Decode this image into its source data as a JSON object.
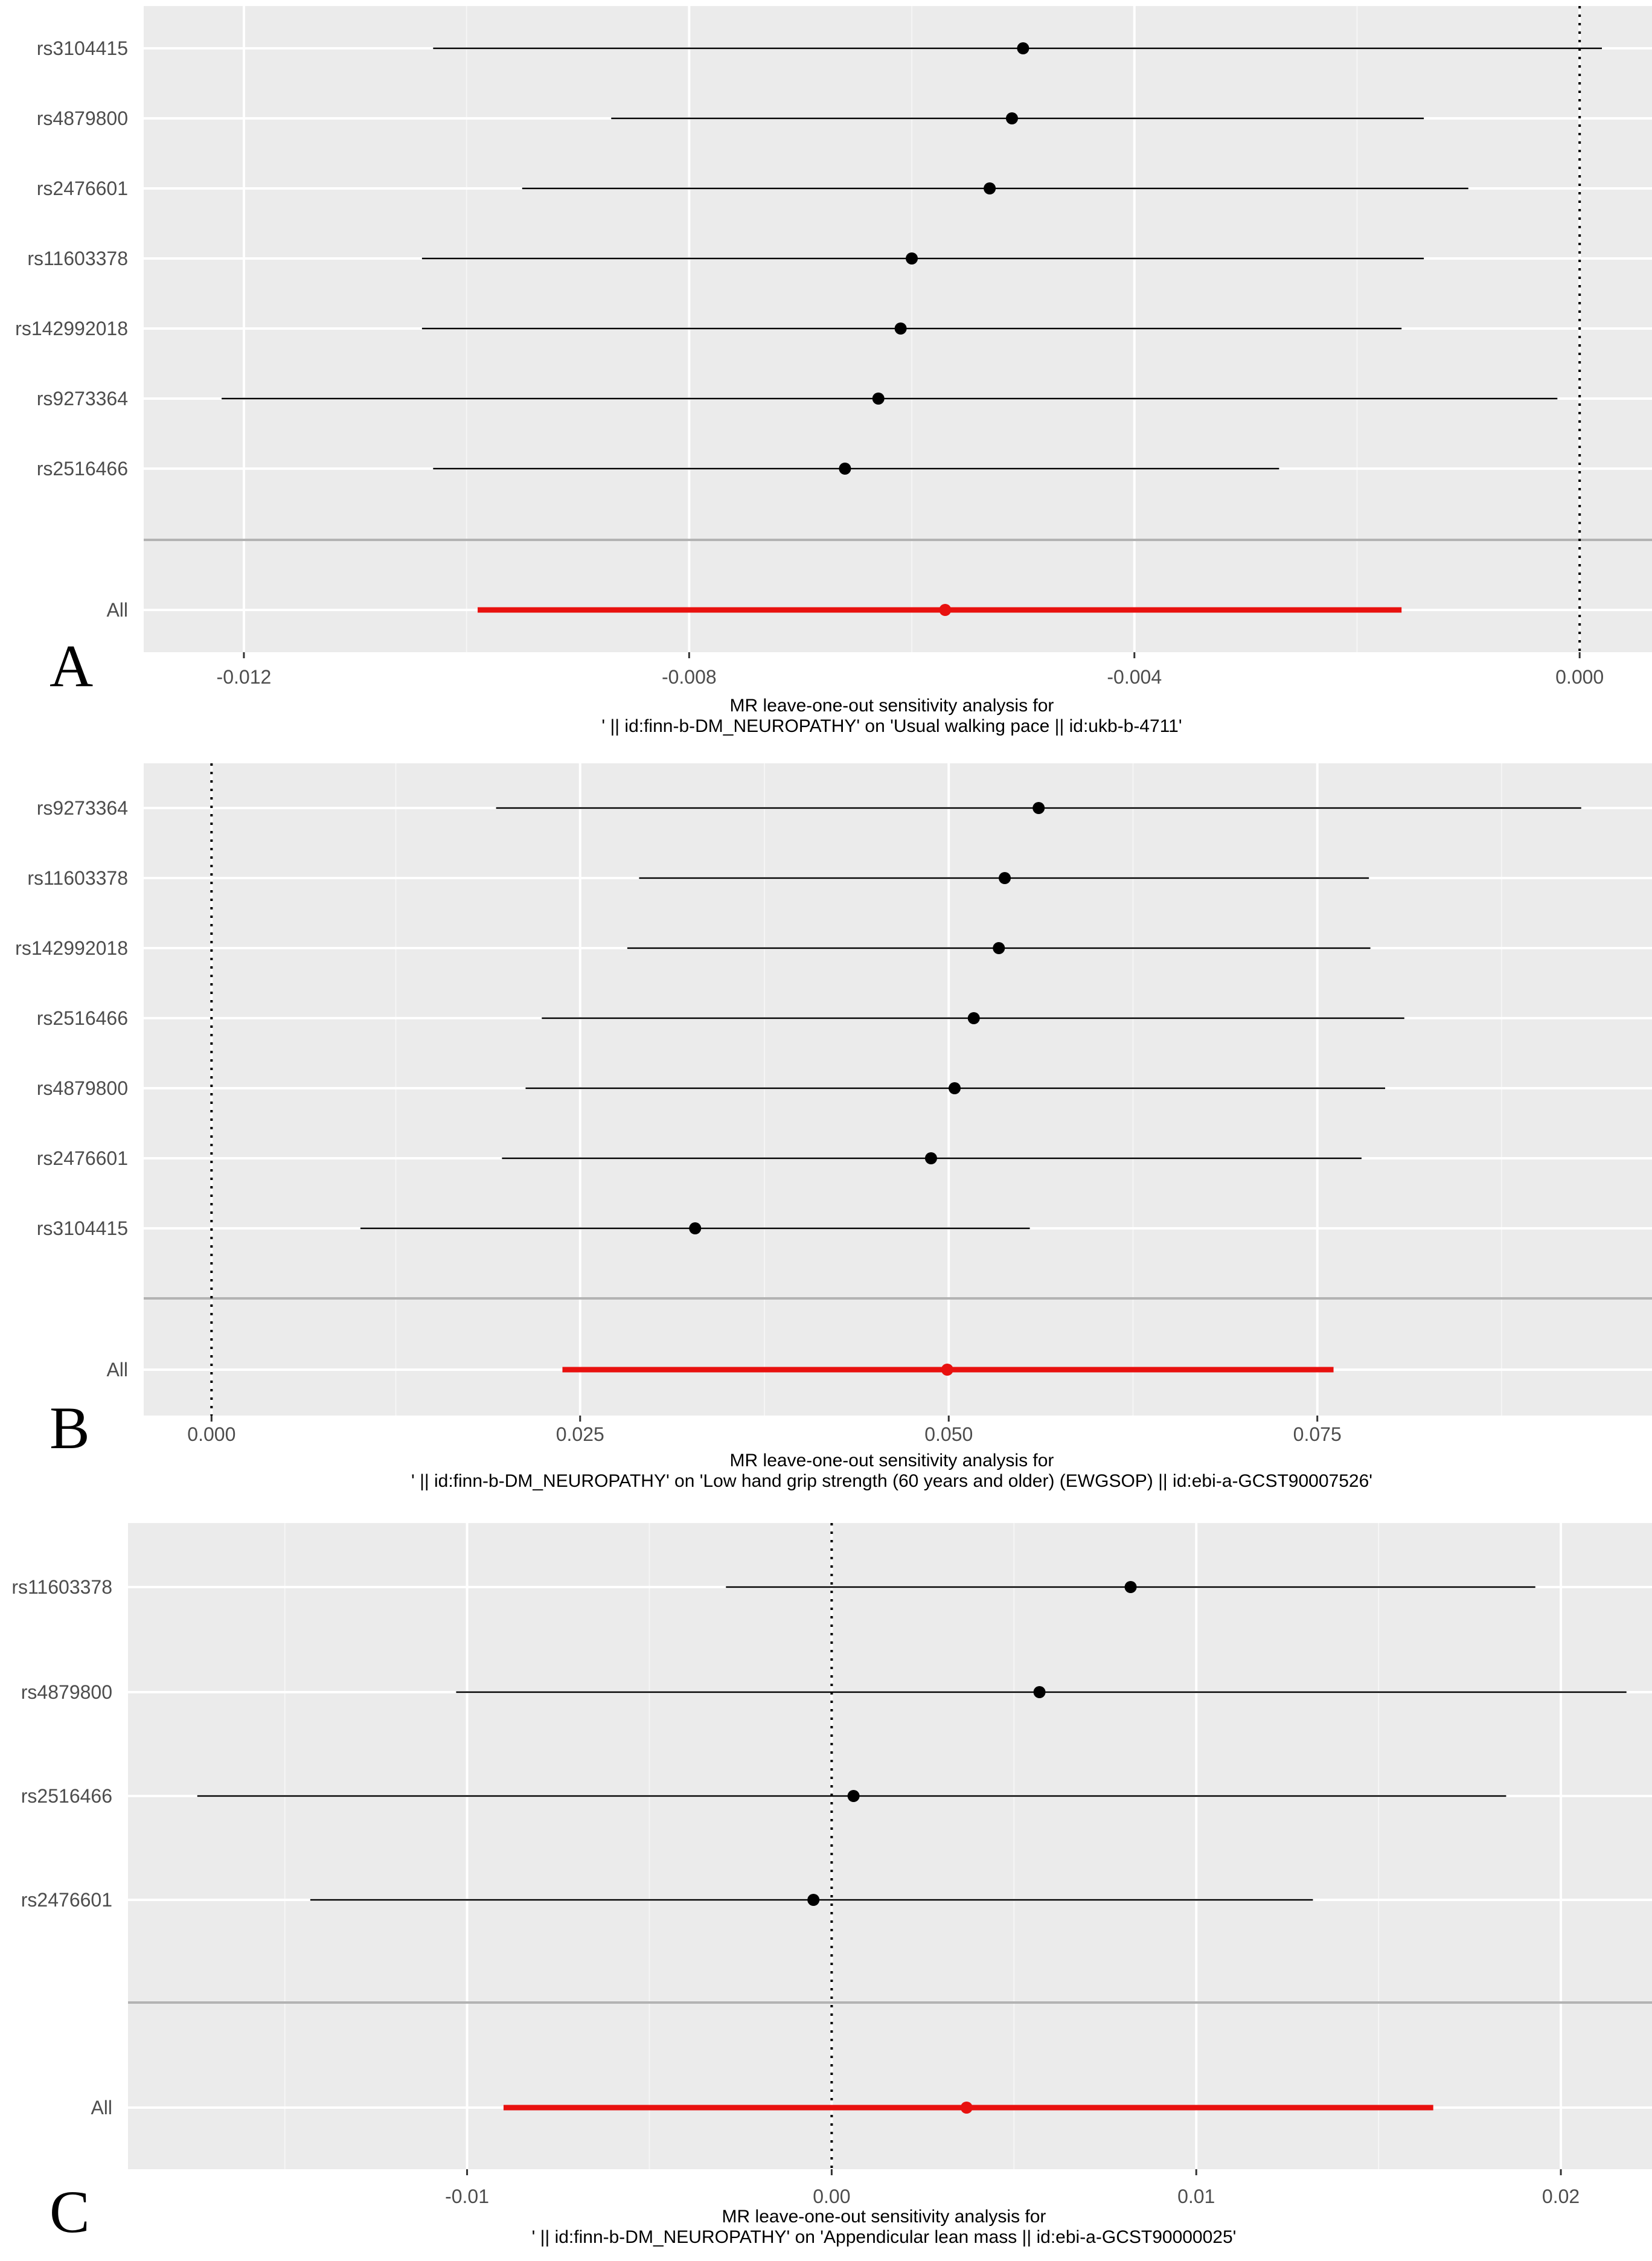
{
  "chart_data": [
    {
      "panel": "A",
      "type": "forest",
      "caption_line1": "MR leave-one-out sensitivity analysis for",
      "caption_line2": "' || id:finn-b-DM_NEUROPATHY' on 'Usual walking pace || id:ukb-b-4711'",
      "xlim": [
        -0.0129,
        0.00065
      ],
      "x_ticks": [
        -0.012,
        -0.008,
        -0.004,
        0.0
      ],
      "x_tick_labels": [
        "-0.012",
        "-0.008",
        "-0.004",
        "0.000"
      ],
      "reference_line": 0,
      "snps": [
        {
          "label": "rs3104415",
          "b": -0.005,
          "lo": -0.0103,
          "hi": 0.0002
        },
        {
          "label": "rs4879800",
          "b": -0.0051,
          "lo": -0.0087,
          "hi": -0.0014
        },
        {
          "label": "rs2476601",
          "b": -0.0053,
          "lo": -0.0095,
          "hi": -0.001
        },
        {
          "label": "rs11603378",
          "b": -0.006,
          "lo": -0.0104,
          "hi": -0.0014
        },
        {
          "label": "rs142992018",
          "b": -0.0061,
          "lo": -0.0104,
          "hi": -0.0016
        },
        {
          "label": "rs9273364",
          "b": -0.0063,
          "lo": -0.0122,
          "hi": -0.0002
        },
        {
          "label": "rs2516466",
          "b": -0.0066,
          "lo": -0.0103,
          "hi": -0.0027
        }
      ],
      "all": {
        "label": "All",
        "b": -0.0057,
        "lo": -0.0099,
        "hi": -0.0016
      }
    },
    {
      "panel": "B",
      "type": "forest",
      "caption_line1": "MR leave-one-out sensitivity analysis for",
      "caption_line2": "' || id:finn-b-DM_NEUROPATHY' on 'Low hand grip strength (60 years and older) (EWGSOP) || id:ebi-a-GCST90007526'",
      "xlim": [
        -0.0046,
        0.0977
      ],
      "x_ticks": [
        0.0,
        0.025,
        0.05,
        0.075
      ],
      "x_tick_labels": [
        "0.000",
        "0.025",
        "0.050",
        "0.075"
      ],
      "reference_line": 0,
      "snps": [
        {
          "label": "rs9273364",
          "b": 0.0561,
          "lo": 0.0193,
          "hi": 0.0929
        },
        {
          "label": "rs11603378",
          "b": 0.0538,
          "lo": 0.029,
          "hi": 0.0785
        },
        {
          "label": "rs142992018",
          "b": 0.0534,
          "lo": 0.0282,
          "hi": 0.0786
        },
        {
          "label": "rs2516466",
          "b": 0.0517,
          "lo": 0.0224,
          "hi": 0.0809
        },
        {
          "label": "rs4879800",
          "b": 0.0504,
          "lo": 0.0213,
          "hi": 0.0796
        },
        {
          "label": "rs2476601",
          "b": 0.0488,
          "lo": 0.0197,
          "hi": 0.078
        },
        {
          "label": "rs3104415",
          "b": 0.0328,
          "lo": 0.0101,
          "hi": 0.0555
        }
      ],
      "all": {
        "label": "All",
        "b": 0.0499,
        "lo": 0.0238,
        "hi": 0.0761
      }
    },
    {
      "panel": "C",
      "type": "forest",
      "caption_line1": "MR leave-one-out sensitivity analysis for",
      "caption_line2": "' || id:finn-b-DM_NEUROPATHY' on 'Appendicular lean mass || id:ebi-a-GCST90000025'",
      "xlim": [
        -0.0193,
        0.0225
      ],
      "x_ticks": [
        -0.01,
        0.0,
        0.01,
        0.02
      ],
      "x_tick_labels": [
        "-0.01",
        "0.00",
        "0.01",
        "0.02"
      ],
      "reference_line": 0,
      "snps": [
        {
          "label": "rs11603378",
          "b": 0.0082,
          "lo": -0.0029,
          "hi": 0.0193
        },
        {
          "label": "rs4879800",
          "b": 0.0057,
          "lo": -0.0103,
          "hi": 0.0218
        },
        {
          "label": "rs2516466",
          "b": 0.0006,
          "lo": -0.0174,
          "hi": 0.0185
        },
        {
          "label": "rs2476601",
          "b": -0.0005,
          "lo": -0.0143,
          "hi": 0.0132
        }
      ],
      "all": {
        "label": "All",
        "b": 0.0037,
        "lo": -0.009,
        "hi": 0.0165
      }
    }
  ],
  "colors": {
    "panel_bg": "#ebebeb",
    "grid_major": "#ffffff",
    "grid_minor": "#f5f5f5",
    "separator": "#b3b3b3",
    "snp": "#000000",
    "all": "#e8110f",
    "tick_text": "#4d4d4d"
  }
}
